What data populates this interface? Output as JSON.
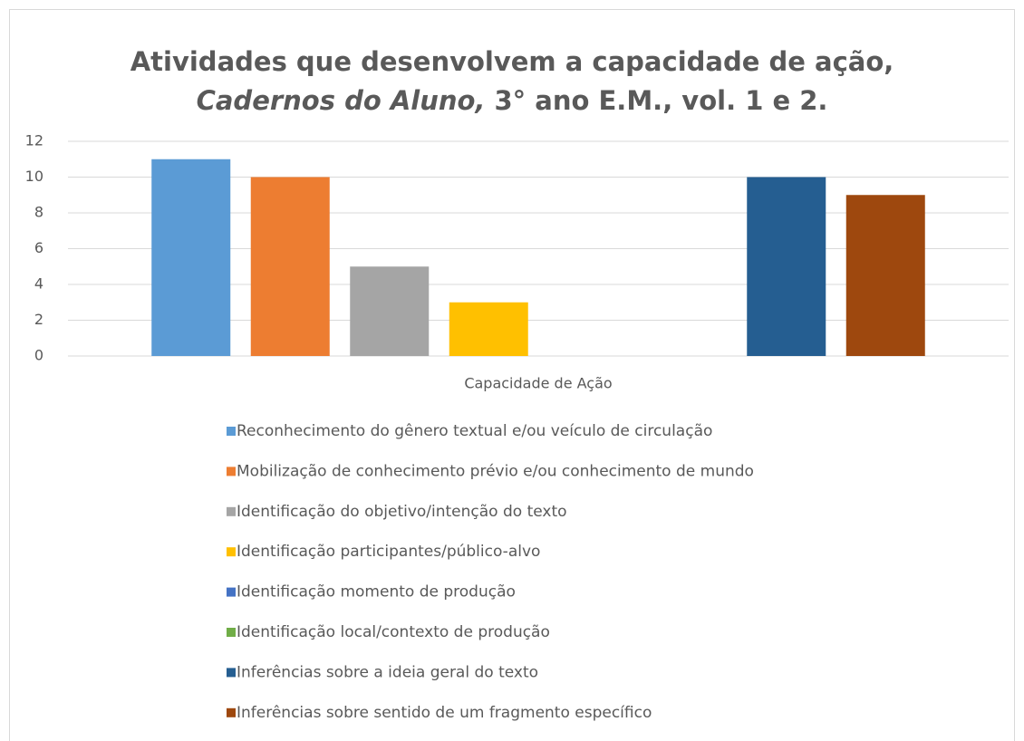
{
  "chart_data": {
    "type": "bar",
    "title": {
      "line1": "Atividades que desenvolvem a capacidade de ação,",
      "line2_italic": "Cadernos do Aluno,",
      "line2": "3° ano E.M., vol. 1 e 2."
    },
    "x_label": "Capacidade de Ação",
    "categories": [
      "Capacidade de Ação"
    ],
    "series": [
      {
        "name": "Reconhecimento do gênero textual e/ou veículo de circulação",
        "color": "#5b9bd5",
        "values": [
          11
        ]
      },
      {
        "name": "Mobilização de conhecimento prévio e/ou conhecimento de mundo",
        "color": "#ed7d31",
        "values": [
          10
        ]
      },
      {
        "name": "Identificação do objetivo/intenção do texto",
        "color": "#a5a5a5",
        "values": [
          5
        ]
      },
      {
        "name": "Identificação participantes/público-alvo",
        "color": "#ffc000",
        "values": [
          3
        ]
      },
      {
        "name": "Identificação momento de produção",
        "color": "#4472c4",
        "values": [
          0
        ]
      },
      {
        "name": "Identificação local/contexto de produção",
        "color": "#70ad47",
        "values": [
          0
        ]
      },
      {
        "name": "Inferências sobre a ideia geral do texto",
        "color": "#255e91",
        "values": [
          10
        ]
      },
      {
        "name": "Inferências sobre sentido de um fragmento específico",
        "color": "#9e480e",
        "values": [
          9
        ]
      }
    ],
    "ylim": [
      0,
      12
    ],
    "yticks": [
      0,
      2,
      4,
      6,
      8,
      10,
      12
    ],
    "grid": true,
    "legend": "bottom"
  }
}
